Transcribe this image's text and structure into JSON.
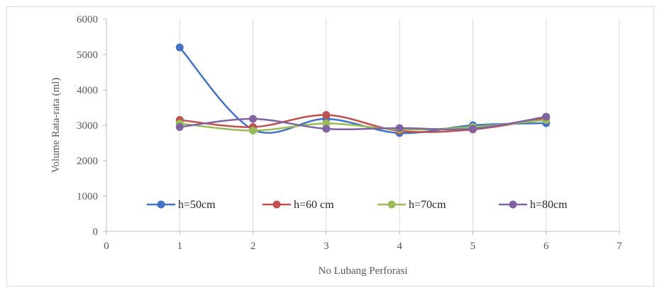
{
  "chart_data": {
    "type": "line",
    "title": "",
    "xlabel": "No Lubang Perforasi",
    "ylabel": "Volume Rata-rata (ml)",
    "xlim": [
      0,
      7
    ],
    "ylim": [
      0,
      6000
    ],
    "x_ticks": [
      "0",
      "1",
      "2",
      "3",
      "4",
      "5",
      "6",
      "7"
    ],
    "y_ticks": [
      "0",
      "1000",
      "2000",
      "3000",
      "4000",
      "5000",
      "6000"
    ],
    "grid": "vertical",
    "legend_position": "inside-bottom",
    "smooth": true,
    "x": [
      1,
      2,
      3,
      4,
      5,
      6
    ],
    "series": [
      {
        "name": "h=50cm",
        "color": "#4472C4",
        "values": [
          5200,
          2880,
          3180,
          2780,
          3000,
          3060
        ]
      },
      {
        "name": "h=60 cm",
        "color": "#C0504D",
        "values": [
          3150,
          2950,
          3290,
          2840,
          2880,
          3200
        ]
      },
      {
        "name": "h=70cm",
        "color": "#9BBB59",
        "values": [
          3050,
          2850,
          3050,
          2880,
          2950,
          3150
        ]
      },
      {
        "name": "h=80cm",
        "color": "#8064A2",
        "values": [
          2950,
          3180,
          2900,
          2920,
          2900,
          3240
        ]
      }
    ]
  }
}
